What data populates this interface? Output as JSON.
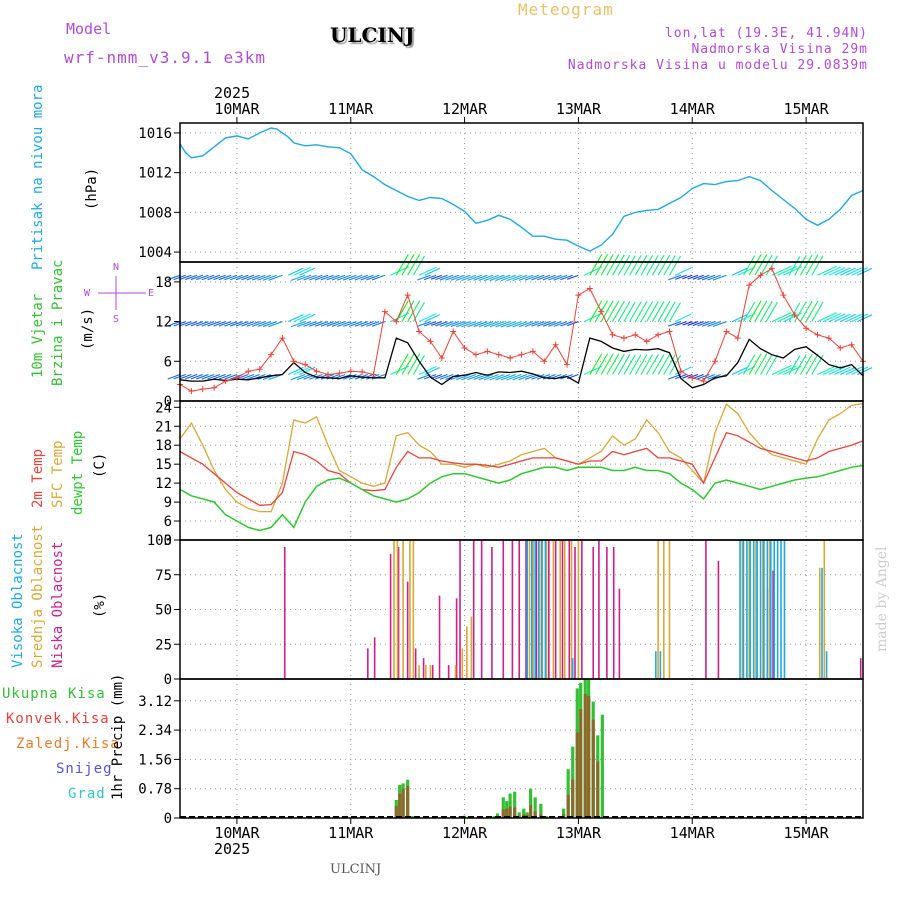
{
  "header": {
    "model_label": "Model",
    "model_name": "wrf-nmm_v3.9.1 e3km",
    "station": "ULCINJ",
    "product": "Meteogram",
    "coords": "lon,lat (19.3E, 41.94N)",
    "elevation": "Nadmorska Visina 29m",
    "model_elevation": "Nadmorska Visina u modelu 29.0839m"
  },
  "footer": {
    "station": "ULCINJ",
    "credit": "made by Angel"
  },
  "colors": {
    "pressure": "#1fa8e6",
    "t2m": "#e8423a",
    "sfc": "#d8a838",
    "dew": "#2ec82e",
    "high_cloud": "#1fa8e6",
    "mid_cloud": "#d8a838",
    "low_cloud": "#cc1f8a",
    "total_precip": "#33c033",
    "conv_precip": "#e8423a",
    "freezing": "#f07a28",
    "snow": "#5252e0",
    "hail": "#2ec8c0",
    "wind_legend": "#b04ad8"
  },
  "chart_data": [
    {
      "type": "line",
      "id": "pressure",
      "title": "Pritisak na nivou mora",
      "ylabel": "(hPa)",
      "ylim": [
        1003,
        1017
      ],
      "yticks": [
        1004,
        1008,
        1012,
        1016
      ],
      "x_unit": "days from 10MAR 00UTC",
      "xlim": [
        -0.5,
        5.5
      ],
      "x_ticks": [
        "10MAR",
        "11MAR",
        "12MAR",
        "13MAR",
        "14MAR",
        "15MAR"
      ],
      "top_year": "2025",
      "bottom_year": "2025",
      "x": [
        -0.5,
        -0.45,
        -0.4,
        -0.3,
        -0.2,
        -0.1,
        0.0,
        0.1,
        0.2,
        0.3,
        0.35,
        0.4,
        0.45,
        0.5,
        0.6,
        0.7,
        0.8,
        0.9,
        1.0,
        1.1,
        1.2,
        1.3,
        1.4,
        1.5,
        1.6,
        1.7,
        1.8,
        1.9,
        2.0,
        2.1,
        2.2,
        2.3,
        2.4,
        2.5,
        2.6,
        2.7,
        2.8,
        2.9,
        3.0,
        3.1,
        3.2,
        3.3,
        3.4,
        3.5,
        3.6,
        3.7,
        3.8,
        3.9,
        4.0,
        4.1,
        4.2,
        4.3,
        4.4,
        4.5,
        4.6,
        4.7,
        4.8,
        4.9,
        5.0,
        5.1,
        5.2,
        5.3,
        5.4,
        5.5
      ],
      "values": [
        1014.9,
        1014.0,
        1013.5,
        1013.7,
        1014.6,
        1015.5,
        1015.7,
        1015.4,
        1016.0,
        1016.5,
        1016.4,
        1016.0,
        1015.6,
        1015.0,
        1014.7,
        1014.8,
        1014.6,
        1014.5,
        1013.9,
        1012.3,
        1011.6,
        1010.8,
        1010.2,
        1009.6,
        1009.2,
        1009.5,
        1009.4,
        1008.8,
        1008.1,
        1006.9,
        1007.2,
        1007.7,
        1007.3,
        1006.5,
        1005.6,
        1005.6,
        1005.3,
        1005.2,
        1004.6,
        1004.1,
        1004.7,
        1005.8,
        1007.6,
        1008.0,
        1008.2,
        1008.3,
        1008.9,
        1009.5,
        1010.4,
        1010.9,
        1010.8,
        1011.1,
        1011.2,
        1011.6,
        1011.2,
        1010.2,
        1009.3,
        1008.4,
        1007.3,
        1006.7,
        1007.3,
        1008.3,
        1009.7,
        1010.2
      ]
    },
    {
      "type": "line",
      "id": "wind",
      "title": "10m Vjetar",
      "subtitle": "Brzina i Pravac",
      "ylabel": "(m/s)",
      "compass": {
        "n": "N",
        "s": "S",
        "e": "E",
        "w": "W"
      },
      "ylim": [
        0,
        21
      ],
      "yticks": [
        0,
        6,
        12,
        18
      ],
      "x": [
        -0.5,
        -0.4,
        -0.3,
        -0.2,
        -0.1,
        0.0,
        0.1,
        0.2,
        0.3,
        0.4,
        0.5,
        0.6,
        0.7,
        0.8,
        0.9,
        1.0,
        1.1,
        1.2,
        1.3,
        1.4,
        1.5,
        1.6,
        1.7,
        1.8,
        1.9,
        2.0,
        2.1,
        2.2,
        2.3,
        2.4,
        2.5,
        2.6,
        2.7,
        2.8,
        2.9,
        3.0,
        3.1,
        3.2,
        3.3,
        3.4,
        3.5,
        3.6,
        3.7,
        3.8,
        3.9,
        4.0,
        4.1,
        4.2,
        4.3,
        4.4,
        4.5,
        4.6,
        4.7,
        4.8,
        4.9,
        5.0,
        5.1,
        5.2,
        5.3,
        5.4,
        5.5
      ],
      "series": [
        {
          "name": "speed",
          "values": [
            3.2,
            3.0,
            3.0,
            3.3,
            3.1,
            3.3,
            3.2,
            3.5,
            3.8,
            4.0,
            5.8,
            4.3,
            3.6,
            3.5,
            3.4,
            3.8,
            3.6,
            3.5,
            3.5,
            9.5,
            8.8,
            6.0,
            3.6,
            2.5,
            3.7,
            3.9,
            4.3,
            3.9,
            4.4,
            4.3,
            4.5,
            4.1,
            3.5,
            3.4,
            3.7,
            2.7,
            9.5,
            9.0,
            8.0,
            7.5,
            7.8,
            7.7,
            7.9,
            7.3,
            3.4,
            2.0,
            2.5,
            3.5,
            3.8,
            5.8,
            9.3,
            7.9,
            7.0,
            6.5,
            7.8,
            8.2,
            6.9,
            5.5,
            5.0,
            5.5,
            3.8
          ]
        },
        {
          "name": "gust",
          "values": [
            2.5,
            1.5,
            1.8,
            2.0,
            3.0,
            3.5,
            4.5,
            4.8,
            7.0,
            9.5,
            6.0,
            5.5,
            4.5,
            4.0,
            4.2,
            4.5,
            4.4,
            4.0,
            13.5,
            12.0,
            16.0,
            10.5,
            9.0,
            6.5,
            10.5,
            8.0,
            7.0,
            7.5,
            7.0,
            6.5,
            7.0,
            7.5,
            6.0,
            8.5,
            5.5,
            16.0,
            17.0,
            13.5,
            10.0,
            9.5,
            10.0,
            9.0,
            10.0,
            10.5,
            4.5,
            3.5,
            3.0,
            6.0,
            10.5,
            9.5,
            17.5,
            19.0,
            20.0,
            16.0,
            13.0,
            11.0,
            10.0,
            9.5,
            8.0,
            8.5,
            6.0
          ]
        }
      ]
    },
    {
      "type": "line",
      "id": "temperature",
      "titles": [
        "2m Temp",
        "SFC Temp",
        "dewpt Temp"
      ],
      "ylabel": "(C)",
      "ylim": [
        3,
        25
      ],
      "yticks": [
        3,
        6,
        9,
        12,
        15,
        18,
        21,
        24
      ],
      "x": [
        -0.5,
        -0.4,
        -0.3,
        -0.2,
        -0.1,
        0.0,
        0.1,
        0.2,
        0.3,
        0.4,
        0.5,
        0.6,
        0.7,
        0.8,
        0.9,
        1.0,
        1.1,
        1.2,
        1.3,
        1.4,
        1.5,
        1.6,
        1.7,
        1.8,
        1.9,
        2.0,
        2.1,
        2.2,
        2.3,
        2.4,
        2.5,
        2.6,
        2.7,
        2.8,
        2.9,
        3.0,
        3.1,
        3.2,
        3.3,
        3.4,
        3.5,
        3.6,
        3.7,
        3.8,
        3.9,
        4.0,
        4.1,
        4.2,
        4.3,
        4.4,
        4.5,
        4.6,
        4.7,
        4.8,
        4.9,
        5.0,
        5.1,
        5.2,
        5.3,
        5.4,
        5.5
      ],
      "series": [
        {
          "name": "2m Temp",
          "values": [
            17.0,
            16.0,
            15.0,
            13.5,
            12.0,
            10.5,
            9.5,
            8.5,
            8.6,
            10.5,
            17.0,
            16.5,
            15.5,
            14.0,
            13.5,
            12.0,
            11.0,
            10.8,
            11.0,
            14.5,
            17.0,
            16.0,
            16.0,
            15.5,
            15.2,
            15.0,
            15.0,
            14.8,
            14.5,
            15.0,
            15.5,
            16.0,
            16.0,
            16.0,
            15.5,
            15.0,
            15.5,
            15.5,
            17.0,
            16.5,
            17.0,
            17.5,
            16.0,
            16.0,
            15.5,
            15.0,
            12.0,
            16.0,
            20.0,
            19.5,
            18.5,
            17.5,
            17.0,
            16.5,
            16.0,
            15.5,
            16.0,
            17.0,
            17.5,
            18.0,
            18.7
          ]
        },
        {
          "name": "SFC Temp",
          "values": [
            19.0,
            21.5,
            18.0,
            14.0,
            11.0,
            9.0,
            8.0,
            7.5,
            7.5,
            12.0,
            22.0,
            21.5,
            22.5,
            18.0,
            14.0,
            13.0,
            12.0,
            11.5,
            12.0,
            19.5,
            20.0,
            18.0,
            17.0,
            15.0,
            15.0,
            14.5,
            15.0,
            14.5,
            15.0,
            15.5,
            16.5,
            17.0,
            17.5,
            16.0,
            15.5,
            15.0,
            16.0,
            17.0,
            19.5,
            18.0,
            19.0,
            22.0,
            20.0,
            17.0,
            16.0,
            14.0,
            12.0,
            20.0,
            24.5,
            23.0,
            20.0,
            18.0,
            16.5,
            16.0,
            15.5,
            15.0,
            19.0,
            22.0,
            23.0,
            24.3,
            24.6
          ]
        },
        {
          "name": "dewpt Temp",
          "values": [
            11.0,
            10.0,
            9.5,
            9.0,
            7.0,
            6.0,
            5.0,
            4.5,
            5.0,
            7.0,
            5.0,
            9.0,
            11.5,
            12.5,
            12.8,
            12.0,
            11.0,
            10.0,
            9.5,
            9.0,
            9.5,
            10.5,
            12.0,
            13.0,
            13.5,
            13.5,
            13.0,
            12.5,
            12.0,
            12.5,
            13.5,
            14.0,
            14.5,
            14.5,
            14.0,
            14.5,
            14.5,
            14.5,
            14.0,
            14.0,
            14.5,
            14.0,
            14.0,
            13.5,
            12.0,
            11.0,
            9.5,
            12.0,
            12.5,
            12.0,
            11.5,
            11.0,
            11.5,
            12.0,
            12.5,
            12.8,
            13.0,
            13.5,
            14.0,
            14.5,
            14.8
          ]
        }
      ]
    },
    {
      "type": "bar",
      "id": "clouds",
      "titles": [
        "Visoka Oblacnost",
        "Srednja Oblacnost",
        "Niska Oblacnost"
      ],
      "ylabel": "(%)",
      "ylim": [
        0,
        100
      ],
      "yticks": [
        0,
        25,
        50,
        75,
        100
      ],
      "series": [
        {
          "name": "Niska",
          "x": [
            0.42,
            1.15,
            1.21,
            1.35,
            1.42,
            1.5,
            1.57,
            1.64,
            1.72,
            1.78,
            1.86,
            1.93,
            1.96,
            2.08,
            2.15,
            2.24,
            2.34,
            2.42,
            2.48,
            2.54,
            2.6,
            2.63,
            2.68,
            2.74,
            2.8,
            2.86,
            2.92,
            2.97,
            3.03,
            3.13,
            3.18,
            3.25,
            3.31,
            3.36,
            4.12,
            4.23,
            4.66,
            4.71,
            5.48
          ],
          "values": [
            95,
            22,
            30,
            90,
            95,
            70,
            22,
            15,
            10,
            60,
            10,
            58,
            100,
            100,
            100,
            95,
            100,
            100,
            100,
            100,
            100,
            100,
            100,
            100,
            100,
            100,
            100,
            95,
            100,
            95,
            100,
            95,
            95,
            65,
            100,
            85,
            65,
            78,
            15
          ]
        },
        {
          "name": "Srednja",
          "x": [
            1.38,
            1.41,
            1.46,
            1.52,
            1.55,
            1.6,
            1.66,
            1.7,
            1.92,
            1.98,
            2.02,
            2.06,
            2.57,
            2.6,
            2.66,
            2.72,
            2.78,
            2.84,
            2.88,
            2.94,
            3.0,
            3.7,
            3.75,
            3.8,
            4.44,
            4.5,
            4.56,
            4.62,
            4.68,
            5.12,
            5.16
          ],
          "values": [
            100,
            100,
            100,
            100,
            100,
            10,
            10,
            10,
            10,
            22,
            38,
            45,
            100,
            100,
            100,
            100,
            100,
            100,
            100,
            100,
            100,
            100,
            100,
            100,
            100,
            100,
            100,
            100,
            100,
            80,
            100
          ]
        },
        {
          "name": "Visoka",
          "x": [
            2.55,
            2.59,
            2.62,
            2.65,
            2.68,
            2.71,
            2.95,
            3.68,
            3.72,
            4.42,
            4.45,
            4.48,
            4.51,
            4.54,
            4.57,
            4.6,
            4.63,
            4.66,
            4.69,
            4.72,
            4.75,
            4.78,
            4.81,
            5.14,
            5.18
          ],
          "values": [
            100,
            100,
            100,
            100,
            100,
            100,
            15,
            20,
            20,
            100,
            100,
            100,
            100,
            100,
            100,
            100,
            100,
            100,
            100,
            100,
            100,
            100,
            100,
            80,
            20
          ]
        }
      ]
    },
    {
      "type": "bar",
      "id": "precip",
      "titles": [
        "Ukupna Kisa",
        "Konvek.Kisa",
        "Zaledj.Kisa",
        "Snijeg",
        "Grad"
      ],
      "ylabel": "1hr Precip (mm)",
      "ylim": [
        0,
        3.7
      ],
      "yticks": [
        0,
        0.78,
        1.56,
        2.34,
        3.12
      ],
      "ytick_labels": [
        "0",
        "0.78",
        "1.56",
        "2.34",
        "3.12"
      ],
      "x": [
        1.4,
        1.43,
        1.46,
        1.5,
        1.54,
        1.96,
        2.0,
        2.04,
        2.26,
        2.29,
        2.34,
        2.37,
        2.4,
        2.44,
        2.48,
        2.52,
        2.55,
        2.58,
        2.62,
        2.67,
        2.72,
        2.87,
        2.91,
        2.95,
        2.99,
        3.02,
        3.06,
        3.09,
        3.13,
        3.17,
        3.21
      ],
      "series": [
        {
          "name": "Ukupna Kisa",
          "values": [
            0.48,
            0.88,
            0.92,
            1.02,
            0.05,
            0.05,
            0.06,
            0.04,
            0.05,
            0.12,
            0.55,
            0.45,
            0.65,
            0.7,
            0.15,
            0.25,
            0.15,
            0.78,
            0.55,
            0.38,
            0.05,
            0.25,
            1.3,
            1.9,
            3.45,
            3.6,
            3.72,
            3.7,
            3.1,
            2.2,
            2.75
          ]
        },
        {
          "name": "Konvek.Kisa",
          "values": [
            0.32,
            0.65,
            0.78,
            0.85,
            0.0,
            0.0,
            0.0,
            0.0,
            0.0,
            0.0,
            0.22,
            0.25,
            0.3,
            0.28,
            0.06,
            0.1,
            0.08,
            0.35,
            0.18,
            0.1,
            0.0,
            0.1,
            0.62,
            1.02,
            2.28,
            2.9,
            3.3,
            3.25,
            2.62,
            1.5,
            0.0
          ]
        }
      ]
    }
  ]
}
